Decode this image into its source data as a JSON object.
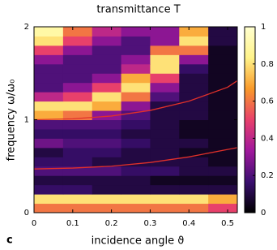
{
  "chart_data": {
    "type": "heatmap",
    "title": "transmittance T",
    "xlabel": "incidence angle ϑ",
    "ylabel": "frequency ω/ω₀",
    "panel_label": "c",
    "xbins": [
      0,
      0.075,
      0.15,
      0.225,
      0.3,
      0.375,
      0.45,
      0.525
    ],
    "ybins": [
      0,
      0.1,
      0.2,
      0.3,
      0.4,
      0.5,
      0.6,
      0.7,
      0.8,
      0.9,
      1.0,
      1.1,
      1.2,
      1.3,
      1.4,
      1.5,
      1.6,
      1.7,
      1.8,
      1.9,
      2.0
    ],
    "z": [
      [
        0.6,
        0.6,
        0.6,
        0.6,
        0.6,
        0.6,
        0.5
      ],
      [
        0.8,
        0.8,
        0.8,
        0.8,
        0.8,
        0.8,
        0.7
      ],
      [
        0.15,
        0.15,
        0.1,
        0.1,
        0.1,
        0.1,
        0.1
      ],
      [
        0.1,
        0.1,
        0.1,
        0.1,
        0.05,
        0.05,
        0.05
      ],
      [
        0.2,
        0.2,
        0.2,
        0.15,
        0.15,
        0.1,
        0.1
      ],
      [
        0.15,
        0.15,
        0.1,
        0.1,
        0.1,
        0.1,
        0.05
      ],
      [
        0.1,
        0.15,
        0.15,
        0.1,
        0.1,
        0.05,
        0.05
      ],
      [
        0.25,
        0.2,
        0.2,
        0.15,
        0.1,
        0.1,
        0.05
      ],
      [
        0.15,
        0.15,
        0.15,
        0.1,
        0.1,
        0.05,
        0.05
      ],
      [
        0.2,
        0.2,
        0.2,
        0.15,
        0.1,
        0.05,
        0.05
      ],
      [
        0.7,
        0.6,
        0.3,
        0.2,
        0.1,
        0.1,
        0.05
      ],
      [
        0.8,
        0.8,
        0.7,
        0.3,
        0.1,
        0.1,
        0.05
      ],
      [
        0.4,
        0.5,
        0.8,
        0.6,
        0.2,
        0.1,
        0.05
      ],
      [
        0.2,
        0.3,
        0.5,
        0.8,
        0.3,
        0.1,
        0.05
      ],
      [
        0.2,
        0.2,
        0.3,
        0.7,
        0.5,
        0.1,
        0.05
      ],
      [
        0.2,
        0.2,
        0.2,
        0.4,
        0.8,
        0.15,
        0.05
      ],
      [
        0.3,
        0.2,
        0.2,
        0.3,
        0.8,
        0.3,
        0.05
      ],
      [
        0.5,
        0.3,
        0.2,
        0.2,
        0.6,
        0.6,
        0.05
      ],
      [
        0.8,
        0.5,
        0.3,
        0.2,
        0.3,
        0.8,
        0.1
      ],
      [
        0.9,
        0.6,
        0.4,
        0.3,
        0.3,
        0.7,
        0.1
      ]
    ],
    "colormap": [
      "#000000",
      "#3b0f70",
      "#a0189c",
      "#e8406b",
      "#f99a2a",
      "#fff38a",
      "#ffffd0"
    ],
    "curves": [
      {
        "color": "#e0302a",
        "x": [
          0,
          0.1,
          0.2,
          0.3,
          0.4,
          0.5,
          0.525
        ],
        "y": [
          0.47,
          0.48,
          0.5,
          0.54,
          0.6,
          0.68,
          0.7
        ]
      },
      {
        "color": "#e0302a",
        "x": [
          0,
          0.1,
          0.2,
          0.3,
          0.4,
          0.5,
          0.525
        ],
        "y": [
          1.0,
          1.01,
          1.04,
          1.1,
          1.2,
          1.35,
          1.42
        ]
      }
    ],
    "xlim": [
      0,
      0.525
    ],
    "ylim": [
      0,
      2
    ],
    "xticks": [
      0,
      0.1,
      0.2,
      0.3,
      0.4,
      0.5
    ],
    "yticks": [
      0,
      1,
      2
    ],
    "zlim": [
      0,
      1
    ],
    "zticks": [
      0,
      0.2,
      0.4,
      0.6,
      0.8,
      1
    ]
  }
}
